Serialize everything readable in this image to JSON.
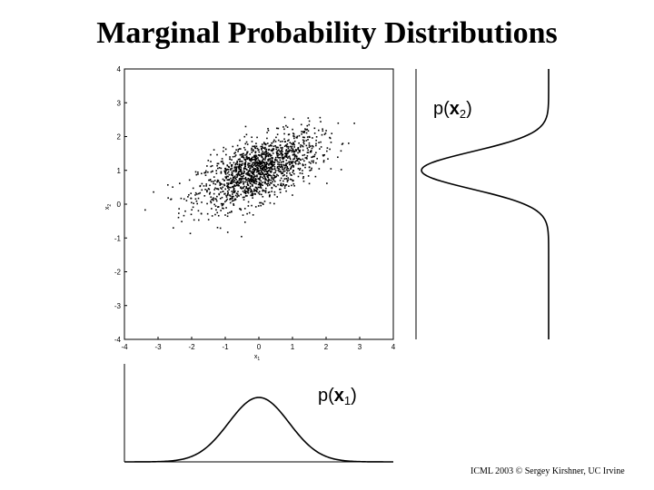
{
  "slide": {
    "title": "Marginal Probability Distributions",
    "footer": "ICML 2003 © Sergey Kirshner, UC Irvine"
  },
  "chart_data": [
    {
      "type": "scatter",
      "xlabel": "x1",
      "ylabel": "x2",
      "xlim": [
        -4,
        4
      ],
      "ylim": [
        -4,
        4
      ],
      "xticks": [
        "-4",
        "-3",
        "-2",
        "-1",
        "0",
        "1",
        "2",
        "3",
        "4"
      ],
      "yticks": [
        "-4",
        "-3",
        "-2",
        "-1",
        "0",
        "1",
        "2",
        "3",
        "4"
      ],
      "grid": false,
      "distribution": {
        "mean": [
          0,
          1
        ],
        "std": [
          0.9,
          0.55
        ],
        "correlation": 0.6,
        "n_points": 1500
      }
    },
    {
      "type": "line",
      "label": "p(x1)",
      "label_parts": {
        "prefix": "p(",
        "var": "x",
        "sub": "1",
        "suffix": ")"
      },
      "xlim": [
        -4,
        4
      ],
      "function": "gaussian",
      "mean": 0,
      "std": 0.9
    },
    {
      "type": "line",
      "orientation": "vertical",
      "label": "p(x2)",
      "label_parts": {
        "prefix": "p(",
        "var": "x",
        "sub": "2",
        "suffix": ")"
      },
      "ylim": [
        -4,
        4
      ],
      "function": "gaussian",
      "mean": 1,
      "std": 0.55
    }
  ]
}
